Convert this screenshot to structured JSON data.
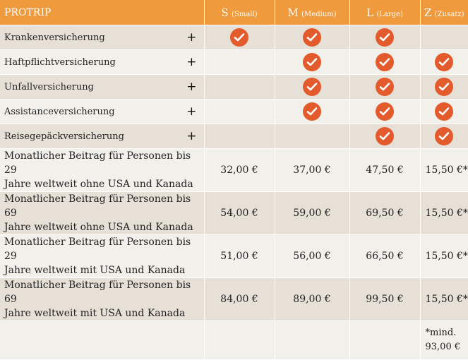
{
  "header": {
    "title": "PROTRIP",
    "columns": [
      {
        "letter": "S",
        "size": "(Small)"
      },
      {
        "letter": "M",
        "size": "(Medium)"
      },
      {
        "letter": "L",
        "size": "(Large)"
      },
      {
        "letter": "Z",
        "size": "(Zusatz)"
      }
    ]
  },
  "features": [
    {
      "label": "Krankenversicherung",
      "included": [
        true,
        true,
        true,
        false
      ]
    },
    {
      "label": "Haftpflichtversicherung",
      "included": [
        false,
        true,
        true,
        true
      ]
    },
    {
      "label": "Unfallversicherung",
      "included": [
        false,
        true,
        true,
        true
      ]
    },
    {
      "label": "Assistanceversicherung",
      "included": [
        false,
        true,
        true,
        true
      ]
    },
    {
      "label": "Reisegepäckversicherung",
      "included": [
        false,
        false,
        true,
        true
      ]
    }
  ],
  "plus_symbol": "+",
  "prices": [
    {
      "line1": "Monatlicher Beitrag für Personen bis 29",
      "line2": "Jahre weltweit ohne USA und Kanada",
      "values": [
        "32,00 €",
        "37,00 €",
        "47,50 €",
        "15,50 €*"
      ]
    },
    {
      "line1": "Monatlicher Beitrag für Personen bis 69",
      "line2": "Jahre weltweit ohne USA und Kanada",
      "values": [
        "54,00 €",
        "59,00 €",
        "69,50 €",
        "15,50 €*"
      ]
    },
    {
      "line1": "Monatlicher Beitrag für Personen bis 29",
      "line2": "Jahre weltweit mit USA und Kanada",
      "values": [
        "51,00 €",
        "56,00 €",
        "66,50 €",
        "15,50 €*"
      ]
    },
    {
      "line1": "Monatlicher Beitrag für Personen bis 69",
      "line2": "Jahre weltweit mit USA und Kanada",
      "values": [
        "84,00 €",
        "89,00 €",
        "99,50 €",
        "15,50 €*"
      ]
    }
  ],
  "footnote": {
    "line1": "*mind.",
    "line2": "93,00 €"
  },
  "colors": {
    "header": "#f09a3e",
    "check": "#e35a2c",
    "row_dark": "#e6e0d7",
    "row_light": "#f2f0eb"
  },
  "icons": {
    "check": "check-circle-icon",
    "expand": "plus-icon"
  }
}
